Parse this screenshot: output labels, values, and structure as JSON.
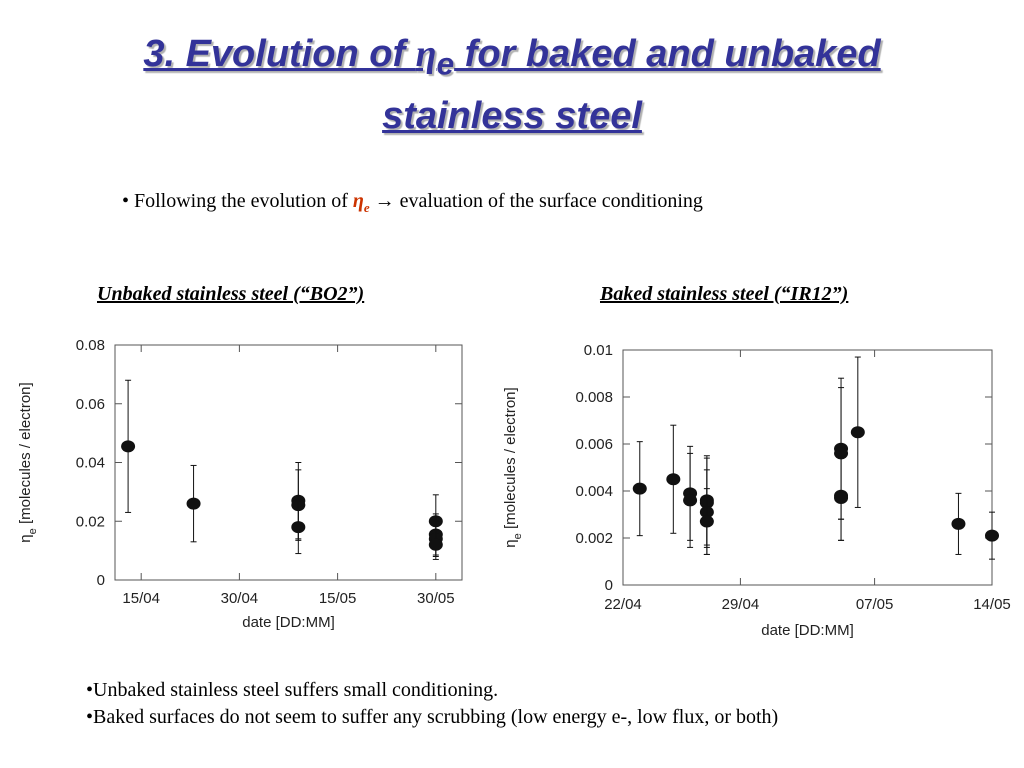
{
  "slide": {
    "title_before": "3. Evolution of ",
    "title_symbol": "η",
    "title_subscript": "e",
    "title_after": " for baked and unbaked",
    "title_line2": "stainless steel",
    "bullet_before": "• Following the evolution of ",
    "bullet_symbol": "η",
    "bullet_subscript": "e",
    "bullet_after": " → evaluation of the surface conditioning",
    "conclusions": [
      "•Unbaked stainless steel suffers small conditioning.",
      "•Baked surfaces do not seem to suffer any scrubbing (low energy e-, low flux, or both)"
    ]
  },
  "chart_data": [
    {
      "type": "scatter",
      "title": "Unbaked stainless steel (“BO2”)",
      "xlabel": "date [DD:MM]",
      "ylabel_symbol": "η",
      "ylabel_subscript": "e",
      "ylabel": " [molecules / electron]",
      "xlim": [
        "11/04",
        "03/06"
      ],
      "xticks": [
        "15/04",
        "30/04",
        "15/05",
        "30/05"
      ],
      "ylim": [
        0,
        0.08
      ],
      "yticks": [
        0,
        0.02,
        0.04,
        0.06,
        0.08
      ],
      "series": [
        {
          "color": "#111111",
          "x": [
            "13/04",
            "23/04",
            "09/05",
            "09/05",
            "09/05",
            "30/05",
            "30/05",
            "30/05",
            "30/05"
          ],
          "values": [
            0.0455,
            0.026,
            0.027,
            0.0255,
            0.018,
            0.02,
            0.0155,
            0.014,
            0.012
          ],
          "errors": [
            0.0225,
            0.013,
            0.013,
            0.012,
            0.009,
            0.009,
            0.007,
            0.006,
            0.005
          ]
        }
      ]
    },
    {
      "type": "scatter",
      "title": "Baked stainless steel (“IR12”)",
      "xlabel": "date [DD:MM]",
      "ylabel_symbol": "η",
      "ylabel_subscript": "e",
      "ylabel": " [molecules / electron]",
      "xlim": [
        "22/04",
        "14/05"
      ],
      "xticks": [
        "22/04",
        "29/04",
        "07/05",
        "14/05"
      ],
      "ylim": [
        0,
        0.01
      ],
      "yticks": [
        0,
        0.002,
        0.004,
        0.006,
        0.008,
        0.01
      ],
      "series": [
        {
          "color": "#111111",
          "x": [
            "23/04",
            "25/04",
            "26/04",
            "26/04",
            "27/04",
            "27/04",
            "27/04",
            "27/04",
            "05/05",
            "05/05",
            "05/05",
            "05/05",
            "06/05",
            "12/05",
            "14/05"
          ],
          "values": [
            0.0041,
            0.0045,
            0.0039,
            0.0036,
            0.0036,
            0.0035,
            0.0031,
            0.0027,
            0.0058,
            0.0056,
            0.0038,
            0.0037,
            0.0065,
            0.0026,
            0.0021
          ],
          "errors": [
            0.002,
            0.0023,
            0.002,
            0.002,
            0.0019,
            0.0019,
            0.0018,
            0.0014,
            0.003,
            0.0028,
            0.0019,
            0.0018,
            0.0032,
            0.0013,
            0.001
          ]
        }
      ]
    }
  ]
}
